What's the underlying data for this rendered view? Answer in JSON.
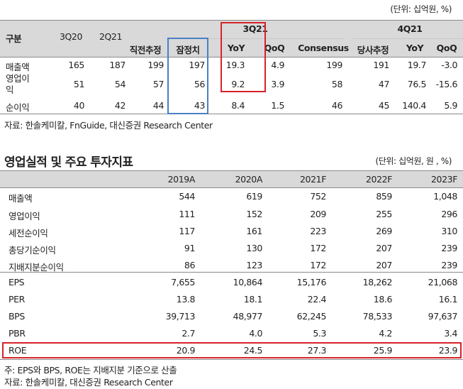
{
  "table1": {
    "unit": "(단위: 십억원, %)",
    "header": {
      "group_label": "구분",
      "q3_21": "3Q21",
      "q4_21": "4Q21",
      "cols": [
        "3Q20",
        "2Q21",
        "직전추정",
        "잠정치",
        "YoY",
        "QoQ",
        "Consensus",
        "당사추정",
        "YoY",
        "QoQ"
      ]
    },
    "rows": [
      {
        "label": "매출액",
        "values": [
          "165",
          "187",
          "199",
          "197",
          "19.3",
          "4.9",
          "199",
          "191",
          "19.7",
          "-3.0"
        ]
      },
      {
        "label": "영업이익",
        "values": [
          "51",
          "54",
          "57",
          "56",
          "9.2",
          "3.9",
          "58",
          "47",
          "76.5",
          "-15.6"
        ]
      },
      {
        "label": "순이익",
        "values": [
          "40",
          "42",
          "44",
          "43",
          "8.4",
          "1.5",
          "46",
          "45",
          "140.4",
          "5.9"
        ]
      }
    ],
    "source": "자료: 한솔케미칼, FnGuide, 대신증권 Research Center"
  },
  "table2": {
    "title": "영업실적 및 주요 투자지표",
    "unit": "(단위: 십억원, 원 , %)",
    "header": [
      "2019A",
      "2020A",
      "2021F",
      "2022F",
      "2023F"
    ],
    "rows": [
      {
        "label": "매출액",
        "values": [
          "544",
          "619",
          "752",
          "859",
          "1,048"
        ]
      },
      {
        "label": "영업이익",
        "values": [
          "111",
          "152",
          "209",
          "255",
          "296"
        ]
      },
      {
        "label": "세전순이익",
        "values": [
          "117",
          "161",
          "223",
          "269",
          "310"
        ]
      },
      {
        "label": "총당기순이익",
        "values": [
          "91",
          "130",
          "172",
          "207",
          "239"
        ]
      },
      {
        "label": "지배지분순이익",
        "values": [
          "86",
          "123",
          "172",
          "207",
          "239"
        ]
      },
      {
        "label": "EPS",
        "values": [
          "7,655",
          "10,864",
          "15,176",
          "18,262",
          "21,068"
        ]
      },
      {
        "label": "PER",
        "values": [
          "13.8",
          "18.1",
          "22.4",
          "18.6",
          "16.1"
        ]
      },
      {
        "label": "BPS",
        "values": [
          "39,713",
          "48,977",
          "62,245",
          "78,533",
          "97,637"
        ]
      },
      {
        "label": "PBR",
        "values": [
          "2.7",
          "4.0",
          "5.3",
          "4.2",
          "3.4"
        ]
      },
      {
        "label": "ROE",
        "values": [
          "20.9",
          "24.5",
          "27.3",
          "25.9",
          "23.9"
        ]
      }
    ],
    "note": "주: EPS와 BPS, ROE는 지배지분 기준으로 산출",
    "source": "자료: 한솔케미칼, 대신증권 Research Center"
  },
  "colors": {
    "header_bg": "#d9d9d9",
    "blue_box": "#4a7fc4",
    "red_box": "#d7222a"
  }
}
